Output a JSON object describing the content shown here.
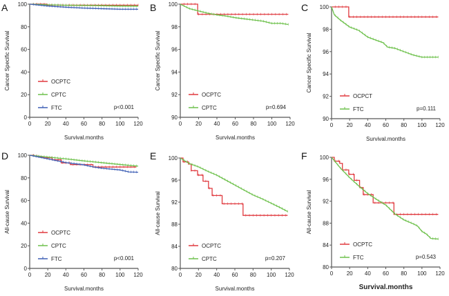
{
  "colors": {
    "red": "#e0393e",
    "green": "#6cc04a",
    "blue": "#3e5fb5",
    "axis": "#555555"
  },
  "chart_data": [
    {
      "type": "line",
      "panel": "A",
      "xlabel": "Survival.months",
      "ylabel": "Cancer Specific Survival",
      "xlim": [
        0,
        120
      ],
      "ylim": [
        0,
        100
      ],
      "xticks": [
        0,
        20,
        40,
        60,
        80,
        100,
        120
      ],
      "yticks": [
        0,
        20,
        40,
        60,
        80,
        100
      ],
      "pvalue": "p<0.001",
      "legend_position": "left-bottom",
      "series": [
        {
          "name": "OCPTC",
          "color": "red",
          "step": true,
          "x": [
            0,
            19,
            120
          ],
          "y": [
            100,
            99.1,
            99.1
          ]
        },
        {
          "name": "CPTC",
          "color": "green",
          "step": false,
          "x": [
            0,
            20,
            40,
            60,
            80,
            100,
            120
          ],
          "y": [
            100,
            99.4,
            99.0,
            98.8,
            98.6,
            98.3,
            98.2
          ]
        },
        {
          "name": "FTC",
          "color": "blue",
          "step": false,
          "x": [
            0,
            20,
            40,
            60,
            80,
            100,
            120
          ],
          "y": [
            100,
            98.3,
            97.3,
            96.5,
            96.0,
            95.5,
            95.5
          ]
        }
      ]
    },
    {
      "type": "line",
      "panel": "B",
      "xlabel": "Survival.months",
      "ylabel": "Cancer Specific Survival",
      "xlim": [
        0,
        120
      ],
      "ylim": [
        90,
        100
      ],
      "xticks": [
        0,
        20,
        40,
        60,
        80,
        100,
        120
      ],
      "yticks": [
        90,
        92,
        94,
        96,
        98,
        100
      ],
      "pvalue": "p=0.694",
      "legend_position": "left-bottom",
      "series": [
        {
          "name": "OCPTC",
          "color": "red",
          "step": true,
          "x": [
            0,
            19,
            118
          ],
          "y": [
            100,
            99.1,
            99.1
          ]
        },
        {
          "name": "CPTC",
          "color": "green",
          "step": false,
          "x": [
            0,
            5,
            10,
            20,
            30,
            40,
            50,
            60,
            70,
            80,
            90,
            100,
            110,
            118
          ],
          "y": [
            100,
            99.8,
            99.6,
            99.4,
            99.2,
            99.05,
            98.95,
            98.8,
            98.7,
            98.6,
            98.5,
            98.3,
            98.3,
            98.2
          ]
        }
      ]
    },
    {
      "type": "line",
      "panel": "C",
      "xlabel": "Survival.months",
      "ylabel": "Cancer Specific Survival",
      "xlim": [
        0,
        120
      ],
      "ylim": [
        90,
        100
      ],
      "xticks": [
        0,
        20,
        40,
        60,
        80,
        100,
        120
      ],
      "yticks": [
        90,
        92,
        94,
        96,
        98,
        100
      ],
      "pvalue": "p=0.111",
      "legend_position": "left-bottom",
      "series": [
        {
          "name": "OCPCT",
          "color": "red",
          "step": true,
          "x": [
            0,
            19,
            118
          ],
          "y": [
            100,
            99.1,
            99.1
          ]
        },
        {
          "name": "FTC",
          "color": "green",
          "step": false,
          "x": [
            0,
            3,
            10,
            20,
            30,
            40,
            50,
            57,
            62,
            70,
            80,
            90,
            100,
            118
          ],
          "y": [
            100,
            99.3,
            98.8,
            98.2,
            97.9,
            97.3,
            97.0,
            96.8,
            96.4,
            96.3,
            96.0,
            95.7,
            95.5,
            95.5
          ]
        }
      ]
    },
    {
      "type": "line",
      "panel": "D",
      "xlabel": "Survival.months",
      "ylabel": "All-cause Survival",
      "xlim": [
        0,
        120
      ],
      "ylim": [
        0,
        100
      ],
      "xticks": [
        0,
        20,
        40,
        60,
        80,
        100,
        120
      ],
      "yticks": [
        0,
        20,
        40,
        60,
        80,
        100
      ],
      "pvalue": "p<0.001",
      "legend_position": "left-bottom",
      "series": [
        {
          "name": "OCPTC",
          "color": "red",
          "step": true,
          "x": [
            0,
            5,
            10,
            15,
            25,
            35,
            45,
            70,
            118
          ],
          "y": [
            100,
            99.3,
            98.5,
            97.7,
            96.0,
            93.2,
            91.7,
            89.6,
            89.6
          ]
        },
        {
          "name": "CPTC",
          "color": "green",
          "step": false,
          "x": [
            0,
            20,
            40,
            60,
            80,
            100,
            120
          ],
          "y": [
            100,
            98.4,
            96.8,
            95.0,
            93.4,
            91.8,
            90.4
          ]
        },
        {
          "name": "FTC",
          "color": "blue",
          "step": false,
          "x": [
            0,
            20,
            40,
            60,
            70,
            80,
            100,
            110,
            120
          ],
          "y": [
            100,
            96.8,
            93.5,
            91.5,
            89.7,
            88.5,
            87.0,
            85.2,
            85.0
          ]
        }
      ]
    },
    {
      "type": "line",
      "panel": "E",
      "xlabel": "Survival.months",
      "ylabel": "All-cause Survival",
      "xlim": [
        0,
        120
      ],
      "ylim": [
        80,
        100
      ],
      "xticks": [
        0,
        20,
        40,
        60,
        80,
        100,
        120
      ],
      "yticks": [
        80,
        84,
        88,
        92,
        96,
        100
      ],
      "pvalue": "p=0.207",
      "legend_position": "left-bottom",
      "series": [
        {
          "name": "OCPTC",
          "color": "red",
          "step": true,
          "x": [
            0,
            3,
            9,
            12,
            19,
            25,
            31,
            35,
            46,
            69,
            118
          ],
          "y": [
            100,
            99.3,
            98.9,
            97.7,
            96.9,
            95.8,
            94.5,
            93.2,
            91.7,
            89.6,
            89.6
          ]
        },
        {
          "name": "CPTC",
          "color": "green",
          "step": false,
          "x": [
            0,
            10,
            20,
            30,
            40,
            50,
            60,
            70,
            80,
            90,
            100,
            110,
            118
          ],
          "y": [
            100,
            99.0,
            98.4,
            97.6,
            96.9,
            96.0,
            95.1,
            94.2,
            93.3,
            92.6,
            91.8,
            91.0,
            90.3
          ]
        }
      ]
    },
    {
      "type": "line",
      "panel": "F",
      "xlabel": "Survival.months",
      "ylabel": "All-cause Survival",
      "xlim": [
        0,
        120
      ],
      "ylim": [
        80,
        100
      ],
      "xticks": [
        0,
        20,
        40,
        60,
        80,
        100,
        120
      ],
      "yticks": [
        80,
        84,
        88,
        92,
        96,
        100
      ],
      "pvalue": "p=0.543",
      "legend_position": "left-bottom",
      "series": [
        {
          "name": "OCPTC",
          "color": "red",
          "step": true,
          "x": [
            0,
            3,
            9,
            12,
            19,
            25,
            31,
            35,
            46,
            69,
            118
          ],
          "y": [
            100,
            99.3,
            98.9,
            97.7,
            96.9,
            95.8,
            94.5,
            93.2,
            91.7,
            89.6,
            89.6
          ]
        },
        {
          "name": "FTC",
          "color": "green",
          "step": false,
          "x": [
            0,
            10,
            20,
            30,
            40,
            50,
            60,
            70,
            80,
            90,
            95,
            100,
            105,
            110,
            118
          ],
          "y": [
            100,
            98.0,
            96.3,
            94.8,
            93.4,
            92.3,
            91.3,
            89.7,
            88.6,
            87.9,
            87.5,
            86.5,
            86.0,
            85.2,
            85.1
          ]
        }
      ]
    }
  ]
}
